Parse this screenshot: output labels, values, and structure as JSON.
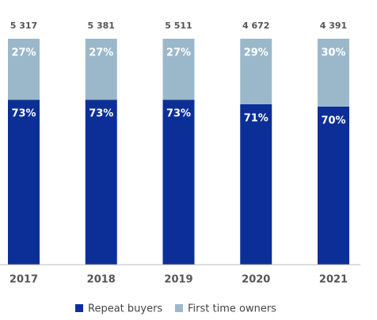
{
  "chart_data": {
    "type": "stacked_bar",
    "categories": [
      "2017",
      "2018",
      "2019",
      "2020",
      "2021"
    ],
    "series": [
      {
        "name": "Repeat buyers",
        "color": "#0b2f96",
        "values": [
          73,
          73,
          73,
          71,
          70
        ],
        "value_labels": [
          "73%",
          "73%",
          "73%",
          "71%",
          "70%"
        ]
      },
      {
        "name": "First time owners",
        "color": "#9bb8cb",
        "values": [
          27,
          27,
          27,
          29,
          30
        ],
        "value_labels": [
          "27%",
          "27%",
          "27%",
          "29%",
          "30%"
        ]
      }
    ],
    "totals": {
      "values": [
        5317,
        5381,
        5511,
        4672,
        4391
      ],
      "value_labels": [
        "5 317",
        "5 381",
        "5 511",
        "4 672",
        "4 391"
      ]
    },
    "ylim": [
      0,
      100
    ]
  }
}
